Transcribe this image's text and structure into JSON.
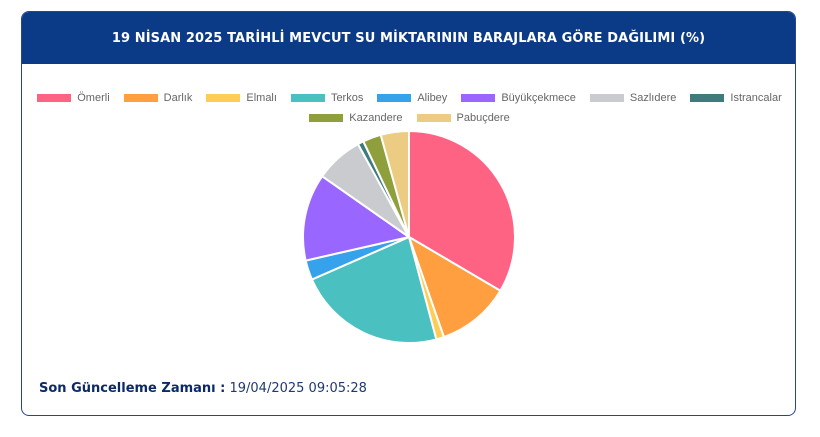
{
  "header": {
    "title": "19 NİSAN 2025 TARİHLİ MEVCUT SU MİKTARININ BARAJLARA GÖRE DAĞILIMI (%)"
  },
  "footer": {
    "label": "Son Güncelleme Zamanı :",
    "value": " 19/04/2025 09:05:28"
  },
  "chart_data": {
    "type": "pie",
    "legend_position": "top",
    "slices": [
      {
        "name": "Ömerli",
        "value": 33.5,
        "color": "#ff6384"
      },
      {
        "name": "Darlık",
        "value": 11.2,
        "color": "#ff9f40"
      },
      {
        "name": "Elmalı",
        "value": 1.2,
        "color": "#ffcd56"
      },
      {
        "name": "Terkos",
        "value": 22.6,
        "color": "#4bc0c0"
      },
      {
        "name": "Alibey",
        "value": 3.0,
        "color": "#36a2eb"
      },
      {
        "name": "Büyükçekmece",
        "value": 13.3,
        "color": "#9966ff"
      },
      {
        "name": "Sazlıdere",
        "value": 7.3,
        "color": "#c9cbcf"
      },
      {
        "name": "Istrancalar",
        "value": 0.9,
        "color": "#3e7b7d"
      },
      {
        "name": "Kazandere",
        "value": 2.8,
        "color": "#8f9f3c"
      },
      {
        "name": "Pabuçdere",
        "value": 4.3,
        "color": "#ebcc82"
      }
    ]
  }
}
